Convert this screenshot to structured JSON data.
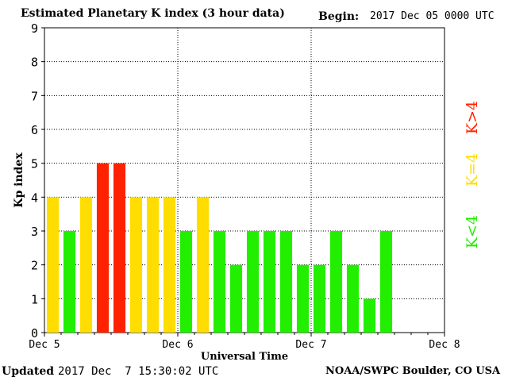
{
  "header": {
    "title": "Estimated Planetary K index (3 hour data)",
    "begin_label": "Begin:",
    "begin_value": "2017 Dec 05 0000 UTC"
  },
  "footer": {
    "updated_label": "Updated",
    "updated_value": "2017 Dec  7 15:30:02 UTC",
    "credit": "NOAA/SWPC Boulder, CO USA"
  },
  "chart_data": {
    "type": "bar",
    "title": "Estimated Planetary K index (3 hour data)",
    "xlabel": "Universal Time",
    "ylabel": "Kp index",
    "ylim": [
      0,
      9
    ],
    "yticks": [
      0,
      1,
      2,
      3,
      4,
      5,
      6,
      7,
      8,
      9
    ],
    "xlim": [
      0,
      72
    ],
    "xticks": [
      {
        "label": "Dec 5",
        "hour": 0
      },
      {
        "label": "Dec 6",
        "hour": 24
      },
      {
        "label": "Dec 7",
        "hour": 48
      },
      {
        "label": "Dec 8",
        "hour": 72
      }
    ],
    "interval_hours": 3,
    "values": [
      4,
      3,
      4,
      5,
      5,
      4,
      4,
      4,
      3,
      4,
      3,
      2,
      3,
      3,
      3,
      2,
      2,
      3,
      2,
      1,
      3
    ],
    "grid": "dotted",
    "legend": [
      {
        "label": "K<4",
        "color": "#22ee00"
      },
      {
        "label": "K=4",
        "color": "#ffdd00"
      },
      {
        "label": "K>4",
        "color": "#ff2200"
      }
    ],
    "colors": {
      "low": "#22ee00",
      "equal": "#ffdd00",
      "high": "#ff2200"
    }
  }
}
